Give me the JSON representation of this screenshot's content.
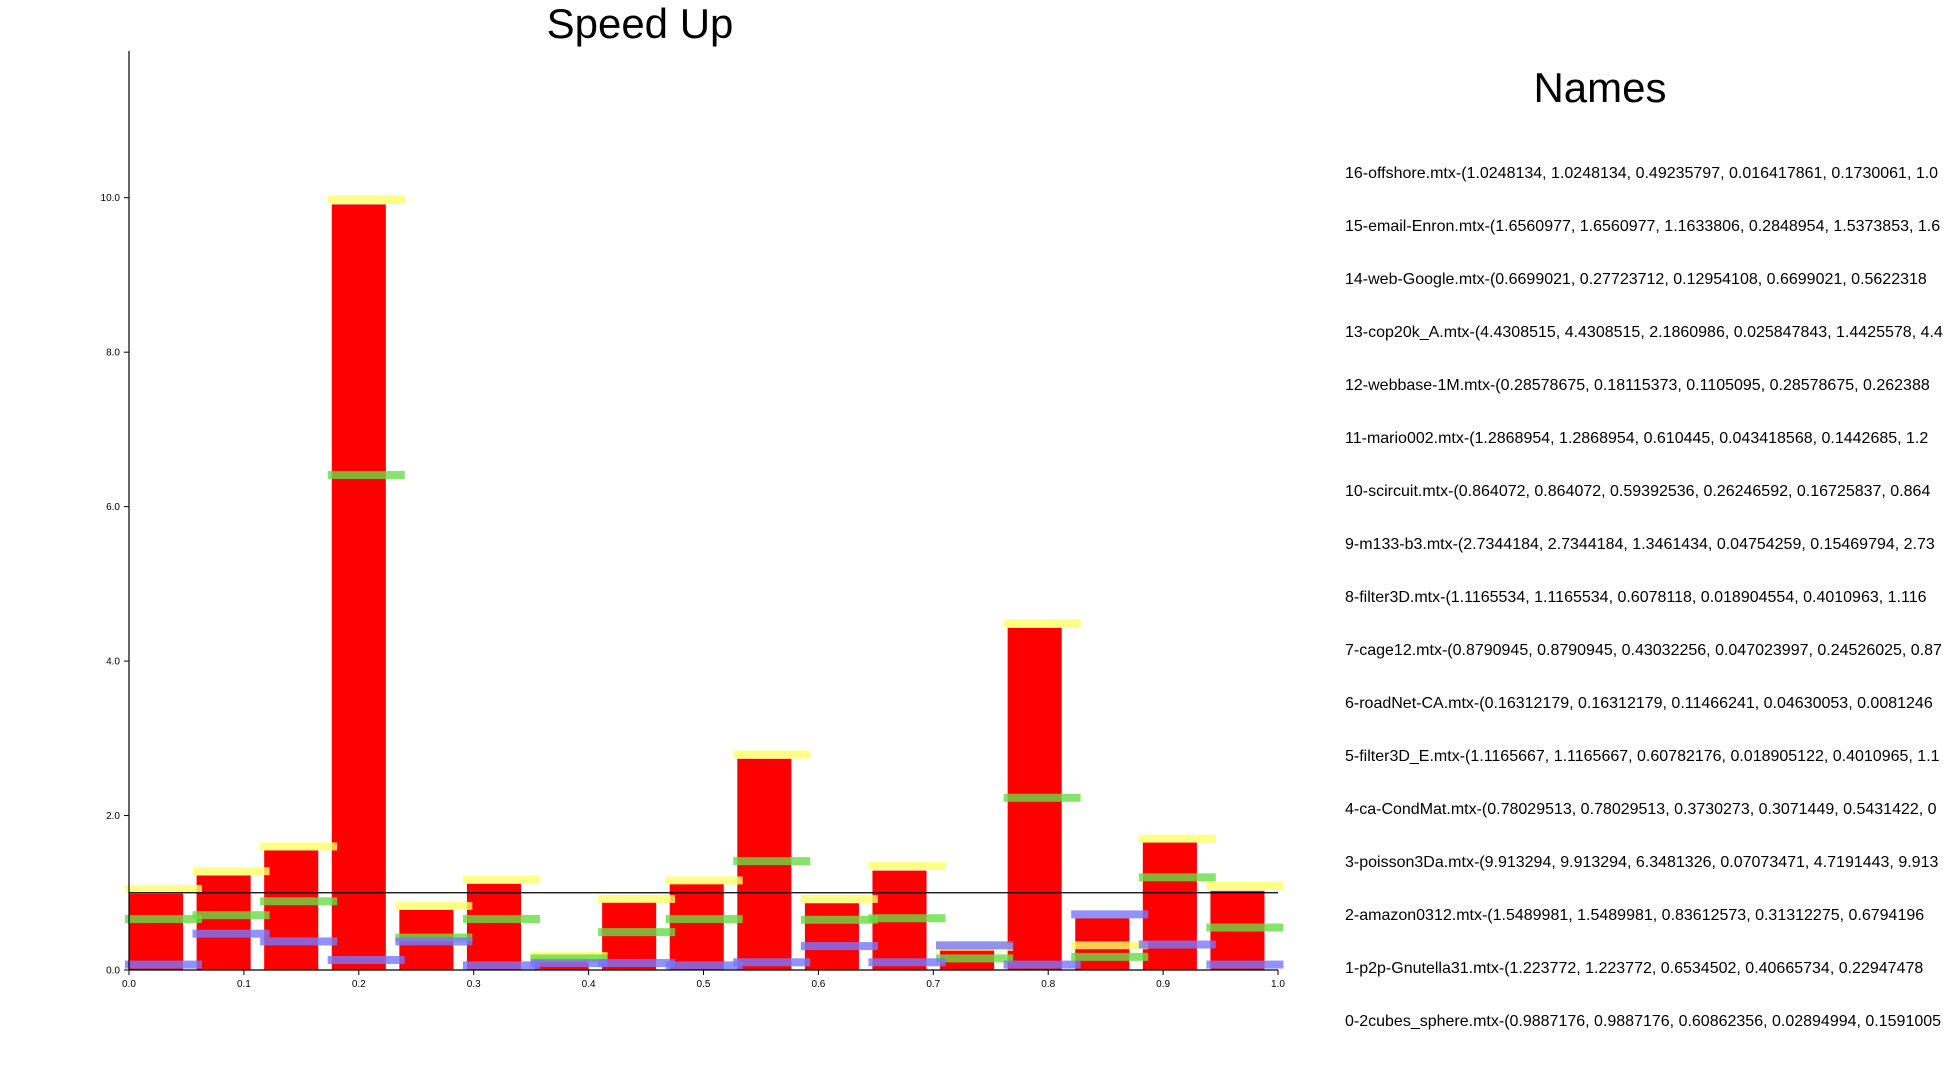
{
  "chart_data": {
    "type": "bar",
    "title": "Speed Up",
    "xlabel": "",
    "ylabel": "",
    "xlim": [
      0.0,
      1.0
    ],
    "ylim": [
      0.0,
      11.9
    ],
    "x_ticks": [
      "0.0",
      "0.1",
      "0.2",
      "0.3",
      "0.4",
      "0.5",
      "0.6",
      "0.7",
      "0.8",
      "0.9",
      "1.0"
    ],
    "y_ticks": [
      "0.0",
      "2.0",
      "4.0",
      "6.0",
      "8.0",
      "10.0"
    ],
    "reference_line": 1.0,
    "grid": false,
    "bars_series": {
      "color": "#ff0000",
      "values": [
        0.9887,
        1.2238,
        1.549,
        9.9133,
        0.7803,
        1.1166,
        0.1631,
        0.8791,
        1.1166,
        2.7344,
        0.8641,
        1.2869,
        0.2858,
        4.4309,
        0.6699,
        1.6561,
        1.0248
      ]
    },
    "marker_series": [
      {
        "color": "#ffff66",
        "values": [
          1.05,
          1.28,
          1.6,
          9.98,
          0.83,
          1.17,
          0.18,
          0.92,
          1.16,
          2.79,
          0.92,
          1.35,
          0.3,
          4.49,
          0.32,
          1.7,
          1.09
        ]
      },
      {
        "color": "#66dd44",
        "values": [
          0.66,
          0.71,
          0.89,
          6.41,
          0.42,
          0.66,
          0.15,
          0.49,
          0.66,
          1.41,
          0.65,
          0.67,
          0.15,
          2.23,
          0.17,
          1.2,
          0.55
        ]
      },
      {
        "color": "#7777ff",
        "values": [
          0.07,
          0.47,
          0.37,
          0.13,
          0.37,
          0.06,
          0.09,
          0.09,
          0.06,
          0.1,
          0.31,
          0.1,
          0.32,
          0.07,
          0.72,
          0.33,
          0.07
        ]
      }
    ]
  },
  "names_panel": {
    "title": "Names",
    "items": [
      "16-offshore.mtx-(1.0248134, 1.0248134, 0.49235797, 0.016417861, 0.1730061, 1.0",
      "15-email-Enron.mtx-(1.6560977, 1.6560977, 1.1633806, 0.2848954, 1.5373853, 1.6",
      "14-web-Google.mtx-(0.6699021, 0.27723712, 0.12954108, 0.6699021, 0.5622318",
      "13-cop20k_A.mtx-(4.4308515, 4.4308515, 2.1860986, 0.025847843, 1.4425578, 4.4",
      "12-webbase-1M.mtx-(0.28578675, 0.18115373, 0.1105095, 0.28578675, 0.262388",
      "11-mario002.mtx-(1.2868954, 1.2868954, 0.610445, 0.043418568, 0.1442685, 1.2",
      "10-scircuit.mtx-(0.864072, 0.864072, 0.59392536, 0.26246592, 0.16725837, 0.864",
      "9-m133-b3.mtx-(2.7344184, 2.7344184, 1.3461434, 0.04754259, 0.15469794, 2.73",
      "8-filter3D.mtx-(1.1165534, 1.1165534, 0.6078118, 0.018904554, 0.4010963, 1.116",
      "7-cage12.mtx-(0.8790945, 0.8790945, 0.43032256, 0.047023997, 0.24526025, 0.87",
      "6-roadNet-CA.mtx-(0.16312179, 0.16312179, 0.11466241, 0.04630053, 0.0081246",
      "5-filter3D_E.mtx-(1.1165667, 1.1165667, 0.60782176, 0.018905122, 0.4010965, 1.1",
      "4-ca-CondMat.mtx-(0.78029513, 0.78029513, 0.3730273, 0.3071449, 0.5431422, 0",
      "3-poisson3Da.mtx-(9.913294, 9.913294, 6.3481326, 0.07073471, 4.7191443, 9.913",
      "2-amazon0312.mtx-(1.5489981, 1.5489981, 0.83612573, 0.31312275, 0.6794196",
      "1-p2p-Gnutella31.mtx-(1.223772, 1.223772, 0.6534502, 0.40665734, 0.22947478",
      "0-2cubes_sphere.mtx-(0.9887176, 0.9887176, 0.60862356, 0.02894994, 0.1591005"
    ]
  }
}
